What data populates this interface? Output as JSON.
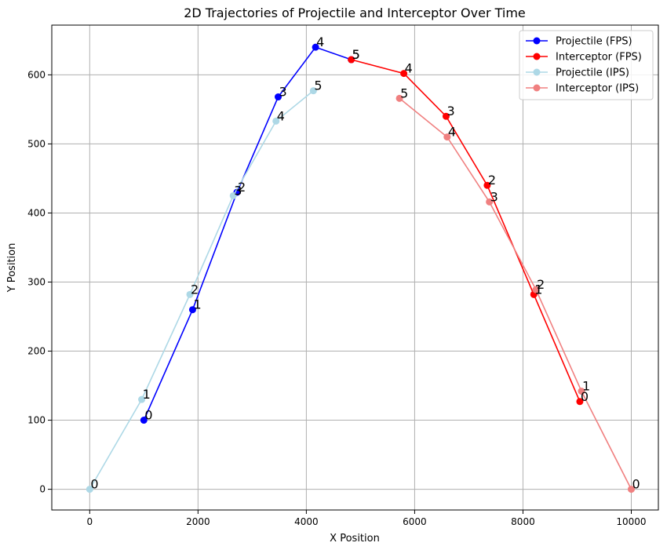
{
  "chart_data": {
    "type": "line",
    "title": "2D Trajectories of Projectile and Interceptor Over Time",
    "xlabel": "X Position",
    "ylabel": "Y Position",
    "xlim": [
      -700,
      10500
    ],
    "ylim": [
      -30,
      672
    ],
    "xticks": [
      0,
      2000,
      4000,
      6000,
      8000,
      10000
    ],
    "yticks": [
      0,
      100,
      200,
      300,
      400,
      500,
      600
    ],
    "grid": true,
    "legend_position": "upper right",
    "series": [
      {
        "name": "Projectile (FPS)",
        "color": "#0000ff",
        "points": [
          {
            "x": 1000,
            "y": 100,
            "label": "0"
          },
          {
            "x": 1900,
            "y": 260,
            "label": "1"
          },
          {
            "x": 2720,
            "y": 430,
            "label": "2"
          },
          {
            "x": 3480,
            "y": 568,
            "label": "3"
          },
          {
            "x": 4170,
            "y": 640,
            "label": "4"
          },
          {
            "x": 4830,
            "y": 622,
            "label": "5"
          }
        ]
      },
      {
        "name": "Interceptor (FPS)",
        "color": "#ff0000",
        "points": [
          {
            "x": 9050,
            "y": 127,
            "label": "0"
          },
          {
            "x": 8200,
            "y": 282,
            "label": "1"
          },
          {
            "x": 7340,
            "y": 440,
            "label": "2"
          },
          {
            "x": 6580,
            "y": 540,
            "label": "3"
          },
          {
            "x": 5800,
            "y": 602,
            "label": "4"
          },
          {
            "x": 4830,
            "y": 622,
            "label": "5"
          }
        ]
      },
      {
        "name": "Projectile (IPS)",
        "color": "#add8e6",
        "points": [
          {
            "x": 0,
            "y": 0,
            "label": "0"
          },
          {
            "x": 960,
            "y": 130,
            "label": "1"
          },
          {
            "x": 1850,
            "y": 282,
            "label": "2"
          },
          {
            "x": 2650,
            "y": 425,
            "label": "3"
          },
          {
            "x": 3440,
            "y": 533,
            "label": "4"
          },
          {
            "x": 4130,
            "y": 577,
            "label": "5"
          }
        ]
      },
      {
        "name": "Interceptor (IPS)",
        "color": "#f08080",
        "points": [
          {
            "x": 10000,
            "y": 0,
            "label": "0"
          },
          {
            "x": 9080,
            "y": 142,
            "label": "1"
          },
          {
            "x": 8240,
            "y": 289,
            "label": "2"
          },
          {
            "x": 7380,
            "y": 416,
            "label": "3"
          },
          {
            "x": 6600,
            "y": 510,
            "label": "4"
          },
          {
            "x": 5720,
            "y": 566,
            "label": "5"
          }
        ]
      }
    ]
  }
}
